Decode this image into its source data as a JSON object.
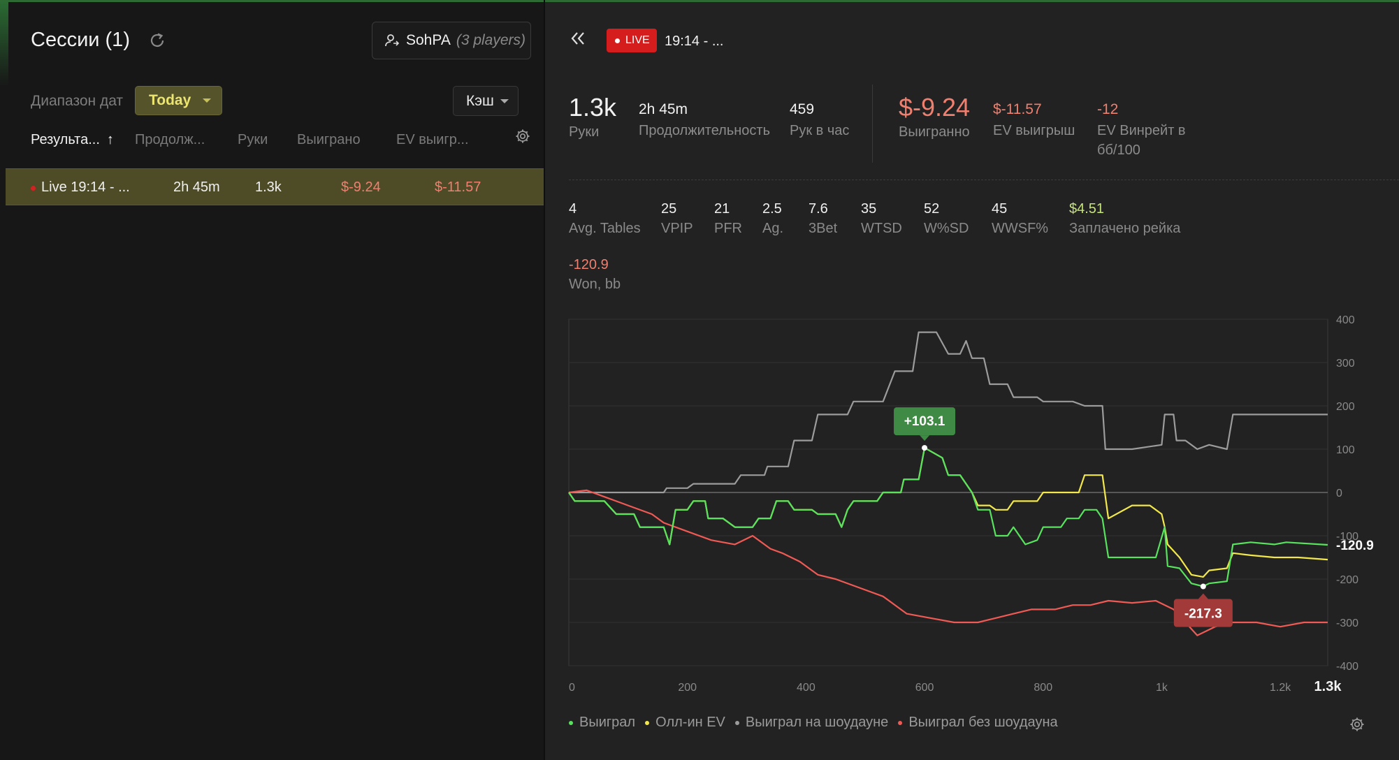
{
  "left": {
    "title": "Сессии (1)",
    "player": {
      "name": "SohPA",
      "count": "(3 players)"
    },
    "date_range_label": "Диапазон дат",
    "date_range_value": "Today",
    "game_type": "Кэш",
    "columns": [
      "Результа...",
      "Продолж...",
      "Руки",
      "Выиграно",
      "EV выигр..."
    ],
    "sort_arrow": "↑",
    "session": {
      "name": "Live 19:14 - ...",
      "duration": "2h 45m",
      "hands": "1.3k",
      "won": "$-9.24",
      "ev_won": "$-11.57"
    }
  },
  "header": {
    "live_badge": "LIVE",
    "title": "19:14 - ..."
  },
  "summary": {
    "hands": {
      "value": "1.3k",
      "label": "Руки"
    },
    "duration": {
      "value": "2h 45m",
      "label": "Продолжительность"
    },
    "hands_per_hour": {
      "value": "459",
      "label": "Рук в час"
    },
    "won": {
      "value": "$-9.24",
      "label": "Выигранно"
    },
    "ev_won": {
      "value": "$-11.57",
      "label": "EV выигрыш"
    },
    "ev_winrate": {
      "value": "-12",
      "label_1": "EV Винрейт в",
      "label_2": "бб/100"
    }
  },
  "stats": [
    {
      "value": "4",
      "label": "Avg. Tables"
    },
    {
      "value": "25",
      "label": "VPIP"
    },
    {
      "value": "21",
      "label": "PFR"
    },
    {
      "value": "2.5",
      "label": "Ag."
    },
    {
      "value": "7.6",
      "label": "3Bet"
    },
    {
      "value": "35",
      "label": "WTSD"
    },
    {
      "value": "52",
      "label": "W%SD"
    },
    {
      "value": "45",
      "label": "WWSF%"
    },
    {
      "value": "$4.51",
      "label": "Заплачено рейка"
    }
  ],
  "won_bb": {
    "value": "-120.9",
    "label": "Won, bb"
  },
  "legend": [
    "Выиграл",
    "Олл-ин EV",
    "Выиграл на шоудауне",
    "Выиграл без шоудауна"
  ],
  "colors": {
    "won": "#58e35e",
    "allin_ev": "#f2e84b",
    "showdown": "#9c9c9c",
    "non_showdown": "#f05a55",
    "accent": "#ebe470",
    "negative": "#ef8070",
    "live": "#d61d1d"
  },
  "chart_data": {
    "type": "line",
    "xlim": [
      0,
      1280
    ],
    "ylim": [
      -400,
      400
    ],
    "x_ticks": [
      "0",
      "200",
      "400",
      "600",
      "800",
      "1k",
      "1.2k",
      "1.3k"
    ],
    "y_ticks": [
      "400",
      "300",
      "200",
      "100",
      "0",
      "-100",
      "-200",
      "-300",
      "-400"
    ],
    "max_label": "+103.1",
    "min_label": "-217.3",
    "end_label": "-120.9",
    "series": [
      {
        "name": "Выиграл",
        "color": "#58e35e",
        "points": [
          [
            0,
            0
          ],
          [
            10,
            -20
          ],
          [
            60,
            -20
          ],
          [
            80,
            -50
          ],
          [
            110,
            -50
          ],
          [
            120,
            -80
          ],
          [
            160,
            -80
          ],
          [
            170,
            -120
          ],
          [
            180,
            -40
          ],
          [
            200,
            -40
          ],
          [
            210,
            -20
          ],
          [
            230,
            -20
          ],
          [
            235,
            -60
          ],
          [
            260,
            -60
          ],
          [
            280,
            -80
          ],
          [
            310,
            -80
          ],
          [
            320,
            -60
          ],
          [
            340,
            -60
          ],
          [
            350,
            -20
          ],
          [
            370,
            -20
          ],
          [
            380,
            -40
          ],
          [
            410,
            -40
          ],
          [
            420,
            -50
          ],
          [
            450,
            -50
          ],
          [
            460,
            -80
          ],
          [
            470,
            -40
          ],
          [
            480,
            -20
          ],
          [
            520,
            -20
          ],
          [
            530,
            0
          ],
          [
            560,
            0
          ],
          [
            565,
            30
          ],
          [
            590,
            30
          ],
          [
            600,
            103
          ],
          [
            630,
            80
          ],
          [
            640,
            40
          ],
          [
            660,
            40
          ],
          [
            680,
            0
          ],
          [
            690,
            -40
          ],
          [
            710,
            -40
          ],
          [
            720,
            -100
          ],
          [
            740,
            -100
          ],
          [
            750,
            -80
          ],
          [
            760,
            -100
          ],
          [
            770,
            -120
          ],
          [
            790,
            -110
          ],
          [
            800,
            -80
          ],
          [
            830,
            -80
          ],
          [
            840,
            -60
          ],
          [
            860,
            -60
          ],
          [
            870,
            -40
          ],
          [
            890,
            -40
          ],
          [
            900,
            -60
          ],
          [
            910,
            -150
          ],
          [
            950,
            -150
          ],
          [
            990,
            -150
          ],
          [
            1005,
            -80
          ],
          [
            1010,
            -170
          ],
          [
            1030,
            -175
          ],
          [
            1050,
            -210
          ],
          [
            1070,
            -217
          ],
          [
            1080,
            -210
          ],
          [
            1110,
            -205
          ],
          [
            1120,
            -120
          ],
          [
            1150,
            -115
          ],
          [
            1190,
            -120
          ],
          [
            1210,
            -115
          ],
          [
            1280,
            -120.9
          ]
        ]
      },
      {
        "name": "Олл-ин EV",
        "color": "#f2e84b",
        "points": [
          [
            0,
            0
          ],
          [
            10,
            -20
          ],
          [
            60,
            -20
          ],
          [
            80,
            -50
          ],
          [
            110,
            -50
          ],
          [
            120,
            -80
          ],
          [
            160,
            -80
          ],
          [
            170,
            -120
          ],
          [
            180,
            -40
          ],
          [
            200,
            -40
          ],
          [
            210,
            -20
          ],
          [
            230,
            -20
          ],
          [
            235,
            -60
          ],
          [
            260,
            -60
          ],
          [
            280,
            -80
          ],
          [
            310,
            -80
          ],
          [
            320,
            -60
          ],
          [
            340,
            -60
          ],
          [
            350,
            -20
          ],
          [
            370,
            -20
          ],
          [
            380,
            -40
          ],
          [
            410,
            -40
          ],
          [
            420,
            -50
          ],
          [
            450,
            -50
          ],
          [
            460,
            -80
          ],
          [
            470,
            -40
          ],
          [
            480,
            -20
          ],
          [
            520,
            -20
          ],
          [
            530,
            0
          ],
          [
            560,
            0
          ],
          [
            565,
            30
          ],
          [
            590,
            30
          ],
          [
            600,
            103
          ],
          [
            630,
            80
          ],
          [
            640,
            40
          ],
          [
            660,
            40
          ],
          [
            680,
            0
          ],
          [
            690,
            -30
          ],
          [
            710,
            -30
          ],
          [
            720,
            -40
          ],
          [
            740,
            -40
          ],
          [
            750,
            -20
          ],
          [
            790,
            -20
          ],
          [
            800,
            0
          ],
          [
            830,
            0
          ],
          [
            860,
            0
          ],
          [
            870,
            40
          ],
          [
            900,
            40
          ],
          [
            910,
            -60
          ],
          [
            950,
            -30
          ],
          [
            980,
            -30
          ],
          [
            1000,
            -50
          ],
          [
            1005,
            -80
          ],
          [
            1010,
            -120
          ],
          [
            1030,
            -150
          ],
          [
            1050,
            -190
          ],
          [
            1070,
            -195
          ],
          [
            1080,
            -180
          ],
          [
            1110,
            -175
          ],
          [
            1120,
            -140
          ],
          [
            1150,
            -145
          ],
          [
            1190,
            -150
          ],
          [
            1230,
            -150
          ],
          [
            1280,
            -155
          ]
        ]
      },
      {
        "name": "Выиграл на шоудауне",
        "color": "#9c9c9c",
        "points": [
          [
            0,
            0
          ],
          [
            160,
            0
          ],
          [
            165,
            10
          ],
          [
            200,
            10
          ],
          [
            210,
            20
          ],
          [
            280,
            20
          ],
          [
            290,
            40
          ],
          [
            330,
            40
          ],
          [
            335,
            60
          ],
          [
            370,
            60
          ],
          [
            380,
            120
          ],
          [
            410,
            120
          ],
          [
            420,
            180
          ],
          [
            470,
            180
          ],
          [
            480,
            210
          ],
          [
            530,
            210
          ],
          [
            550,
            280
          ],
          [
            580,
            280
          ],
          [
            590,
            370
          ],
          [
            620,
            370
          ],
          [
            640,
            320
          ],
          [
            660,
            320
          ],
          [
            670,
            350
          ],
          [
            680,
            310
          ],
          [
            700,
            310
          ],
          [
            710,
            250
          ],
          [
            740,
            250
          ],
          [
            750,
            220
          ],
          [
            790,
            220
          ],
          [
            800,
            210
          ],
          [
            850,
            210
          ],
          [
            870,
            200
          ],
          [
            900,
            200
          ],
          [
            905,
            100
          ],
          [
            950,
            100
          ],
          [
            1000,
            110
          ],
          [
            1005,
            180
          ],
          [
            1020,
            180
          ],
          [
            1025,
            120
          ],
          [
            1040,
            120
          ],
          [
            1060,
            100
          ],
          [
            1080,
            110
          ],
          [
            1110,
            100
          ],
          [
            1120,
            180
          ],
          [
            1180,
            180
          ],
          [
            1220,
            180
          ],
          [
            1280,
            180
          ]
        ]
      },
      {
        "name": "Выиграл без шоудауна",
        "color": "#f05a55",
        "points": [
          [
            0,
            0
          ],
          [
            30,
            5
          ],
          [
            60,
            -10
          ],
          [
            100,
            -30
          ],
          [
            140,
            -50
          ],
          [
            160,
            -70
          ],
          [
            200,
            -90
          ],
          [
            240,
            -110
          ],
          [
            280,
            -120
          ],
          [
            310,
            -100
          ],
          [
            340,
            -130
          ],
          [
            360,
            -140
          ],
          [
            390,
            -160
          ],
          [
            420,
            -190
          ],
          [
            450,
            -200
          ],
          [
            490,
            -220
          ],
          [
            530,
            -240
          ],
          [
            570,
            -280
          ],
          [
            610,
            -290
          ],
          [
            650,
            -300
          ],
          [
            690,
            -300
          ],
          [
            720,
            -290
          ],
          [
            750,
            -280
          ],
          [
            780,
            -270
          ],
          [
            820,
            -270
          ],
          [
            850,
            -260
          ],
          [
            880,
            -260
          ],
          [
            910,
            -250
          ],
          [
            950,
            -255
          ],
          [
            990,
            -250
          ],
          [
            1020,
            -270
          ],
          [
            1040,
            -300
          ],
          [
            1060,
            -330
          ],
          [
            1090,
            -310
          ],
          [
            1120,
            -300
          ],
          [
            1160,
            -300
          ],
          [
            1200,
            -310
          ],
          [
            1240,
            -300
          ],
          [
            1280,
            -300
          ]
        ]
      }
    ]
  }
}
